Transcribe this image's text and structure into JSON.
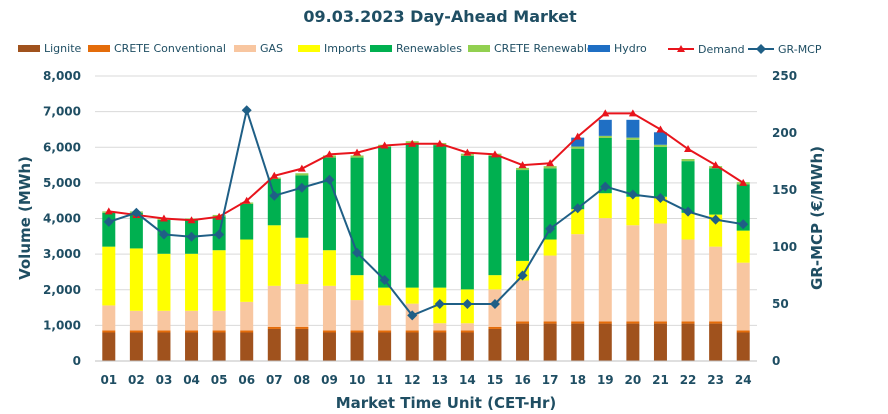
{
  "chart_data": {
    "type": "bar",
    "stacked": true,
    "title": "09.03.2023  Day-Ahead Market",
    "xlabel": "Market Time Unit (CET-Hr)",
    "ylabel": "Volume (MWh)",
    "y2label": "GR-MCP (€/MWh)",
    "ylim": [
      0,
      8000
    ],
    "y2lim": [
      0,
      250
    ],
    "yticks": [
      "0",
      "1,000",
      "2,000",
      "3,000",
      "4,000",
      "5,000",
      "6,000",
      "7,000",
      "8,000"
    ],
    "y2ticks": [
      "0",
      "50",
      "100",
      "150",
      "200",
      "250"
    ],
    "categories": [
      "01",
      "02",
      "03",
      "04",
      "05",
      "06",
      "07",
      "08",
      "09",
      "10",
      "11",
      "12",
      "13",
      "14",
      "15",
      "16",
      "17",
      "18",
      "19",
      "20",
      "21",
      "22",
      "23",
      "24"
    ],
    "series": [
      {
        "name": "Lignite",
        "color": "#a0521d",
        "kind": "bar",
        "values": [
          800,
          800,
          800,
          800,
          800,
          800,
          900,
          900,
          800,
          800,
          800,
          800,
          800,
          800,
          900,
          1050,
          1050,
          1050,
          1050,
          1050,
          1050,
          1050,
          1050,
          800
        ]
      },
      {
        "name": "CRETE Conventional",
        "color": "#e46c0a",
        "kind": "bar",
        "values": [
          60,
          60,
          60,
          60,
          60,
          60,
          60,
          60,
          60,
          60,
          60,
          60,
          60,
          60,
          60,
          60,
          60,
          60,
          60,
          60,
          60,
          60,
          60,
          60
        ]
      },
      {
        "name": "GAS",
        "color": "#f8c6a0",
        "kind": "bar",
        "values": [
          700,
          550,
          550,
          550,
          550,
          800,
          1150,
          1200,
          1250,
          850,
          700,
          750,
          200,
          200,
          1050,
          1150,
          1850,
          2450,
          2900,
          2700,
          2750,
          2300,
          2100,
          1900
        ]
      },
      {
        "name": "Imports",
        "color": "#ffff00",
        "kind": "bar",
        "values": [
          1650,
          1750,
          1600,
          1600,
          1700,
          1750,
          1700,
          1300,
          1000,
          700,
          500,
          450,
          1000,
          950,
          400,
          550,
          450,
          700,
          700,
          800,
          750,
          750,
          900,
          900
        ]
      },
      {
        "name": "Renewables",
        "color": "#00b050",
        "kind": "bar",
        "values": [
          950,
          1000,
          950,
          950,
          950,
          1000,
          1300,
          1750,
          2600,
          3300,
          3950,
          4050,
          4000,
          3750,
          3350,
          2550,
          2000,
          1700,
          1550,
          1600,
          1400,
          1450,
          1300,
          1300
        ]
      },
      {
        "name": "CRETE Renewables",
        "color": "#92d050",
        "kind": "bar",
        "values": [
          40,
          40,
          40,
          40,
          40,
          40,
          40,
          60,
          60,
          60,
          60,
          60,
          60,
          60,
          60,
          60,
          60,
          60,
          60,
          60,
          60,
          60,
          60,
          60
        ]
      },
      {
        "name": "Hydro",
        "color": "#1f6fc4",
        "kind": "bar",
        "values": [
          0,
          0,
          0,
          0,
          0,
          0,
          0,
          0,
          0,
          0,
          0,
          0,
          0,
          0,
          0,
          0,
          0,
          250,
          450,
          500,
          350,
          0,
          0,
          0
        ]
      },
      {
        "name": "Demand",
        "color": "#e8141c",
        "kind": "line-triangle",
        "axis": "left",
        "values": [
          4200,
          4100,
          4000,
          3950,
          4050,
          4500,
          5200,
          5400,
          5800,
          5850,
          6050,
          6100,
          6100,
          5850,
          5800,
          5500,
          5550,
          6300,
          6950,
          6950,
          6500,
          5950,
          5500,
          5000
        ]
      },
      {
        "name": "GR-MCP",
        "color": "#1f5f86",
        "kind": "line-diamond",
        "axis": "right",
        "values": [
          122,
          130,
          111,
          109,
          111,
          220,
          145,
          152,
          159,
          95,
          71,
          40,
          50,
          50,
          50,
          75,
          116,
          134,
          153,
          146,
          143,
          131,
          124,
          120
        ]
      }
    ]
  }
}
